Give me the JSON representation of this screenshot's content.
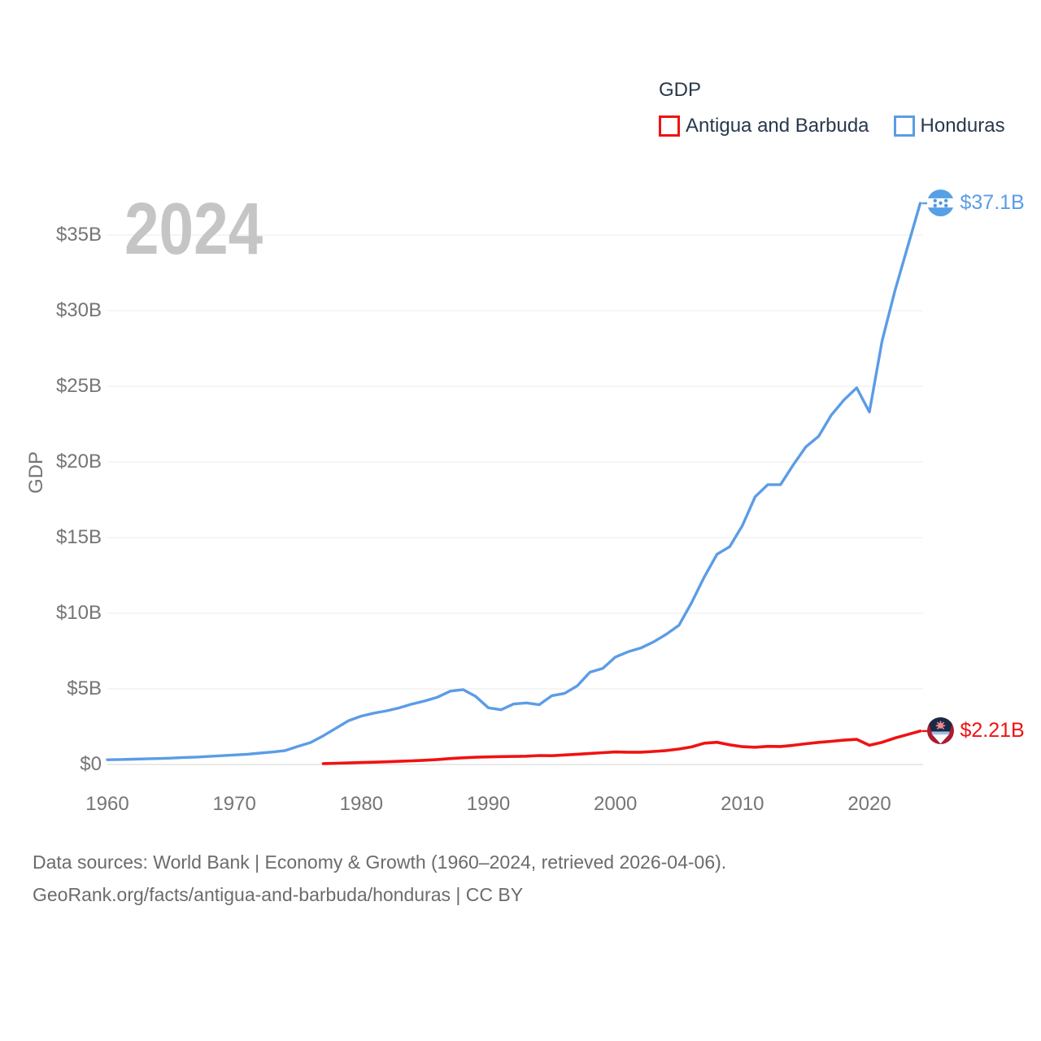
{
  "legend": {
    "title": "GDP",
    "items": [
      {
        "label": "Antigua and Barbuda",
        "color": "#f01212"
      },
      {
        "label": "Honduras",
        "color": "#5b9ce6"
      }
    ]
  },
  "footer": {
    "line1": "Data sources: World Bank | Economy & Growth (1960–2024, retrieved 2026-04-06).",
    "line2": "GeoRank.org/facts/antigua-and-barbuda/honduras | CC BY"
  },
  "colors": {
    "antigua_red": "#f01212",
    "honduras_blue": "#5b9ce6",
    "grid_line": "#ebebeb",
    "zero_line": "#e2e2e2",
    "axis_text": "#757575",
    "legend_text": "#29384d",
    "watermark_gray": "#c5c5c5",
    "footer_gray": "#6b6b6b"
  },
  "chart_data": {
    "type": "line",
    "title": "GDP",
    "ylabel": "GDP",
    "xlabel": "",
    "unit": "USD billions (current US$)",
    "watermark": "2024",
    "grid": true,
    "legend_position": "top-right",
    "ylim": [
      0,
      38
    ],
    "xlim": [
      1960,
      2024
    ],
    "y_ticks": [
      {
        "label": "$0",
        "value": 0
      },
      {
        "label": "$5B",
        "value": 5
      },
      {
        "label": "$10B",
        "value": 10
      },
      {
        "label": "$15B",
        "value": 15
      },
      {
        "label": "$20B",
        "value": 20
      },
      {
        "label": "$25B",
        "value": 25
      },
      {
        "label": "$30B",
        "value": 30
      },
      {
        "label": "$35B",
        "value": 35
      }
    ],
    "x_ticks": [
      {
        "label": "1960",
        "value": 1960
      },
      {
        "label": "1970",
        "value": 1970
      },
      {
        "label": "1980",
        "value": 1980
      },
      {
        "label": "1990",
        "value": 1990
      },
      {
        "label": "2000",
        "value": 2000
      },
      {
        "label": "2010",
        "value": 2010
      },
      {
        "label": "2020",
        "value": 2020
      }
    ],
    "series": [
      {
        "name": "Antigua and Barbuda",
        "color": "#f01212",
        "start_year": 1977,
        "end_year": 2024,
        "end_label": "$2.21B",
        "values": [
          0.06,
          0.08,
          0.1,
          0.13,
          0.15,
          0.18,
          0.21,
          0.24,
          0.28,
          0.33,
          0.39,
          0.44,
          0.48,
          0.5,
          0.52,
          0.53,
          0.55,
          0.59,
          0.58,
          0.63,
          0.68,
          0.73,
          0.78,
          0.83,
          0.81,
          0.81,
          0.86,
          0.92,
          1.02,
          1.16,
          1.41,
          1.47,
          1.3,
          1.18,
          1.14,
          1.2,
          1.19,
          1.27,
          1.37,
          1.46,
          1.53,
          1.61,
          1.66,
          1.27,
          1.47,
          1.75,
          1.98,
          2.21
        ]
      },
      {
        "name": "Honduras",
        "color": "#5b9ce6",
        "start_year": 1960,
        "end_year": 2024,
        "end_label": "$37.1B",
        "values": [
          0.31,
          0.33,
          0.35,
          0.37,
          0.39,
          0.42,
          0.46,
          0.49,
          0.53,
          0.58,
          0.63,
          0.68,
          0.75,
          0.82,
          0.92,
          1.2,
          1.45,
          1.9,
          2.4,
          2.9,
          3.2,
          3.4,
          3.55,
          3.75,
          4.0,
          4.2,
          4.45,
          4.85,
          4.95,
          4.5,
          3.75,
          3.62,
          4.0,
          4.07,
          3.95,
          4.55,
          4.7,
          5.2,
          6.1,
          6.35,
          7.1,
          7.45,
          7.7,
          8.1,
          8.6,
          9.2,
          10.7,
          12.4,
          13.9,
          14.4,
          15.8,
          17.7,
          18.5,
          18.5,
          19.8,
          21.0,
          21.7,
          23.1,
          24.1,
          24.9,
          23.3,
          28.0,
          31.3,
          34.2,
          37.1
        ]
      }
    ]
  }
}
